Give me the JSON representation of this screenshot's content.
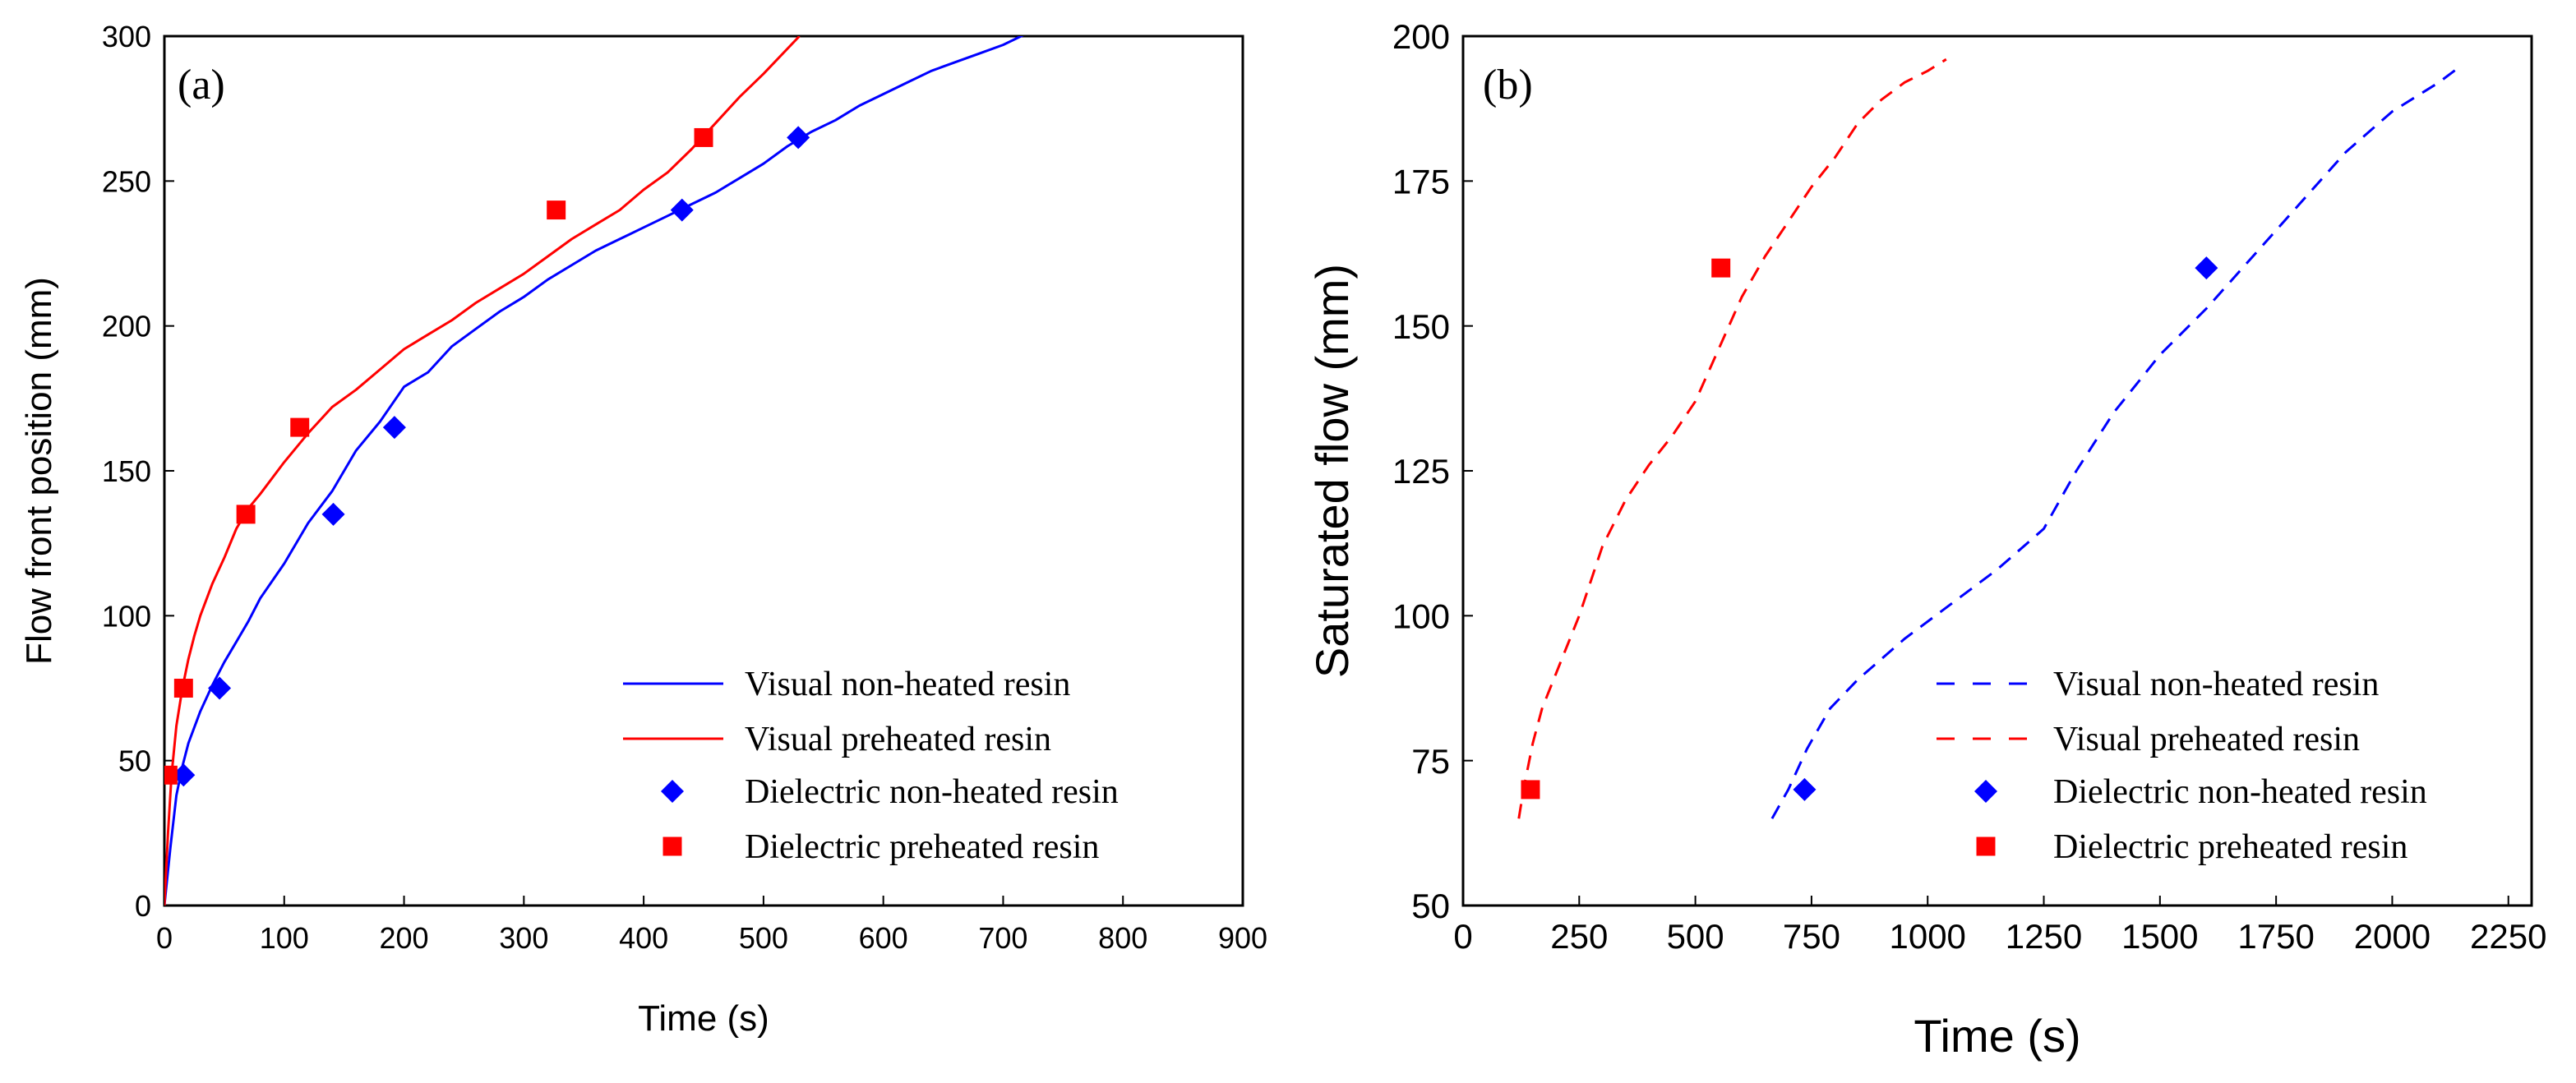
{
  "chart_data": [
    {
      "type": "line",
      "panel_label": "(a)",
      "xlabel": "Time (s)",
      "ylabel": "Flow front position (mm)",
      "xlim": [
        0,
        900
      ],
      "ylim": [
        0,
        300
      ],
      "xticks": [
        0,
        100,
        200,
        300,
        400,
        500,
        600,
        700,
        800,
        900
      ],
      "yticks": [
        0,
        50,
        100,
        150,
        200,
        250,
        300
      ],
      "grid": false,
      "legend_position": "bottom-right",
      "series": [
        {
          "name": "Visual non-heated resin",
          "kind": "line",
          "style": "solid",
          "color": "#0000ff",
          "x": [
            0,
            5,
            10,
            15,
            20,
            30,
            40,
            50,
            60,
            70,
            80,
            90,
            100,
            120,
            140,
            160,
            180,
            200,
            220,
            240,
            260,
            280,
            300,
            320,
            340,
            360,
            380,
            400,
            420,
            440,
            460,
            480,
            500,
            520,
            540,
            560,
            580,
            600,
            620,
            640,
            660,
            680,
            700,
            720,
            740,
            755
          ],
          "y": [
            0,
            20,
            38,
            48,
            56,
            67,
            76,
            84,
            91,
            98,
            106,
            112,
            118,
            132,
            143,
            157,
            167,
            179,
            184,
            193,
            199,
            205,
            210,
            216,
            221,
            226,
            230,
            234,
            238,
            242,
            246,
            251,
            256,
            262,
            267,
            271,
            276,
            280,
            284,
            288,
            291,
            294,
            297,
            301,
            304,
            308
          ]
        },
        {
          "name": "Visual preheated resin",
          "kind": "line",
          "style": "solid",
          "color": "#ff0000",
          "x": [
            0,
            3,
            6,
            10,
            15,
            20,
            25,
            30,
            40,
            50,
            60,
            70,
            80,
            100,
            120,
            140,
            160,
            180,
            200,
            220,
            240,
            260,
            280,
            300,
            320,
            340,
            360,
            380,
            400,
            420,
            440,
            460,
            480,
            500,
            530
          ],
          "y": [
            0,
            25,
            45,
            62,
            75,
            85,
            93,
            100,
            111,
            120,
            130,
            137,
            142,
            153,
            163,
            172,
            178,
            185,
            192,
            197,
            202,
            208,
            213,
            218,
            224,
            230,
            235,
            240,
            247,
            253,
            261,
            270,
            279,
            287,
            300
          ]
        },
        {
          "name": "Dielectric non-heated resin",
          "kind": "scatter",
          "marker": "diamond",
          "color": "#0000ff",
          "x": [
            16,
            46,
            141,
            192,
            432,
            529
          ],
          "y": [
            45,
            75,
            135,
            165,
            240,
            265
          ]
        },
        {
          "name": "Dielectric preheated resin",
          "kind": "scatter",
          "marker": "square",
          "color": "#ff0000",
          "x": [
            3,
            16,
            68,
            113,
            327,
            450
          ],
          "y": [
            45,
            75,
            135,
            165,
            240,
            265
          ]
        }
      ]
    },
    {
      "type": "line",
      "panel_label": "(b)",
      "xlabel": "Time (s)",
      "ylabel": "Saturated flow (mm)",
      "xlim": [
        0,
        2300
      ],
      "ylim": [
        50,
        200
      ],
      "xticks": [
        0,
        250,
        500,
        750,
        1000,
        1250,
        1500,
        1750,
        2000,
        2250
      ],
      "yticks": [
        50,
        75,
        100,
        125,
        150,
        175,
        200
      ],
      "grid": false,
      "legend_position": "bottom-right",
      "series": [
        {
          "name": "Visual non-heated resin",
          "kind": "line",
          "style": "dashed",
          "color": "#0000ff",
          "x": [
            665,
            700,
            740,
            790,
            850,
            950,
            1050,
            1150,
            1250,
            1320,
            1400,
            1500,
            1600,
            1700,
            1800,
            1900,
            2000,
            2100,
            2150
          ],
          "y": [
            65,
            70,
            77,
            84,
            89,
            96,
            102,
            108,
            115,
            125,
            135,
            145,
            153,
            162,
            171,
            180,
            187,
            192,
            195
          ]
        },
        {
          "name": "Visual preheated resin",
          "kind": "line",
          "style": "dashed",
          "color": "#ff0000",
          "x": [
            120,
            130,
            150,
            170,
            200,
            250,
            300,
            350,
            400,
            450,
            500,
            550,
            600,
            650,
            700,
            750,
            800,
            850,
            900,
            950,
            1000,
            1040
          ],
          "y": [
            65,
            70,
            78,
            84,
            90,
            100,
            112,
            120,
            126,
            131,
            137,
            146,
            155,
            162,
            168,
            174,
            179,
            185,
            189,
            192,
            194,
            196
          ]
        },
        {
          "name": "Dielectric non-heated resin",
          "kind": "scatter",
          "marker": "diamond",
          "color": "#0000ff",
          "x": [
            735,
            1600
          ],
          "y": [
            70,
            160
          ]
        },
        {
          "name": "Dielectric preheated resin",
          "kind": "scatter",
          "marker": "square",
          "color": "#ff0000",
          "x": [
            145,
            555
          ],
          "y": [
            70,
            160
          ]
        }
      ]
    }
  ]
}
